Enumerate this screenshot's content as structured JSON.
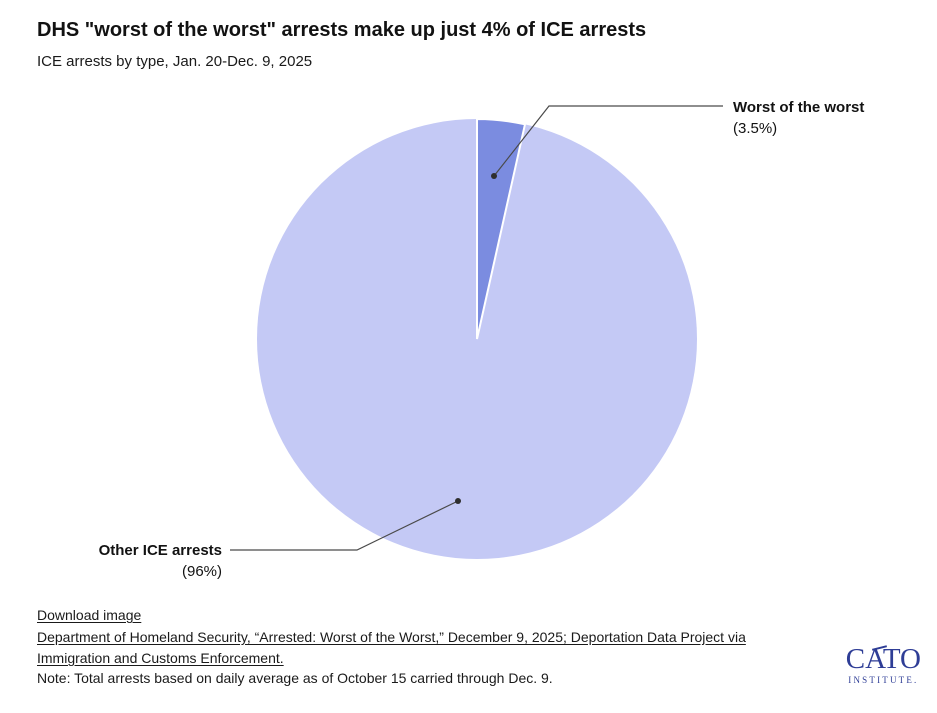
{
  "header": {
    "title": "DHS \"worst of the worst\" arrests make up just 4% of ICE arrests",
    "subtitle": "ICE arrests by type, Jan. 20-Dec. 9, 2025"
  },
  "chart_data": {
    "type": "pie",
    "title": "DHS \"worst of the worst\" arrests make up just 4% of ICE arrests",
    "subtitle": "ICE arrests by type, Jan. 20-Dec. 9, 2025",
    "categories": [
      "Worst of the worst",
      "Other ICE arrests"
    ],
    "values": [
      3.5,
      96.5
    ],
    "display_labels": [
      "(3.5%)",
      "(96%)"
    ],
    "colors": [
      "#7b8ce0",
      "#c4c9f5"
    ],
    "slice_separator_color": "#ffffff",
    "start_angle_deg": 0,
    "direction": "clockwise",
    "legend_position": "none",
    "label_style": "callouts-with-leader-lines"
  },
  "annotations": {
    "worst": {
      "name": "Worst of the worst",
      "pct": "(3.5%)"
    },
    "other": {
      "name": "Other ICE arrests",
      "pct": "(96%)"
    }
  },
  "footer": {
    "download_label": "Download image",
    "source": {
      "lines": [
        "Department of Homeland Security, “Arrested: Worst of the Worst,” December 9, 2025; Deportation Data Project via",
        "Immigration and Customs Enforcement."
      ]
    },
    "note": "Note: Total arrests based on daily average as of October 15 carried through Dec. 9."
  },
  "logo": {
    "wordmark": "CATO",
    "subtext": "INSTITUTE.",
    "color": "#2e3d96"
  }
}
